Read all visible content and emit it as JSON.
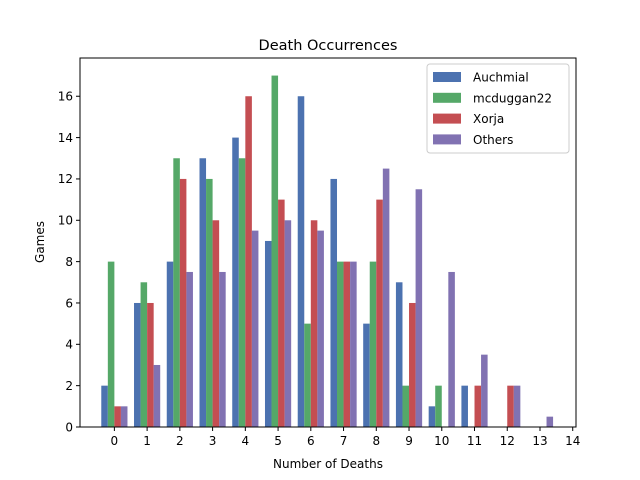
{
  "chart_data": {
    "type": "bar",
    "title": "Death Occurrences",
    "xlabel": "Number of Deaths",
    "ylabel": "Games",
    "categories": [
      0,
      1,
      2,
      3,
      4,
      5,
      6,
      7,
      8,
      9,
      10,
      11,
      12,
      13
    ],
    "x_ticks": [
      "0",
      "1",
      "2",
      "3",
      "4",
      "5",
      "6",
      "7",
      "8",
      "9",
      "10",
      "11",
      "12",
      "13",
      "14"
    ],
    "y_ticks": [
      "0",
      "2",
      "4",
      "6",
      "8",
      "10",
      "12",
      "14",
      "16"
    ],
    "xlim": [
      -1.05,
      14.1
    ],
    "ylim": [
      0,
      17.85
    ],
    "grid": false,
    "legend_position": "top-right",
    "series": [
      {
        "name": "Auchmial",
        "color": "#4c72b0",
        "values": [
          2,
          6,
          8,
          13,
          14,
          9,
          16,
          12,
          5,
          7,
          1,
          2,
          0,
          0
        ]
      },
      {
        "name": "mcduggan22",
        "color": "#55a868",
        "values": [
          8,
          7,
          13,
          12,
          13,
          17,
          5,
          8,
          8,
          2,
          2,
          0,
          0,
          0
        ]
      },
      {
        "name": "Xorja",
        "color": "#c44e52",
        "values": [
          1,
          6,
          12,
          10,
          16,
          11,
          10,
          8,
          11,
          6,
          0,
          2,
          2,
          0
        ]
      },
      {
        "name": "Others",
        "color": "#8172b2",
        "values": [
          1,
          3,
          7.5,
          7.5,
          9.5,
          10,
          9.5,
          8,
          12.5,
          11.5,
          7.5,
          3.5,
          2,
          0.5
        ]
      }
    ]
  }
}
